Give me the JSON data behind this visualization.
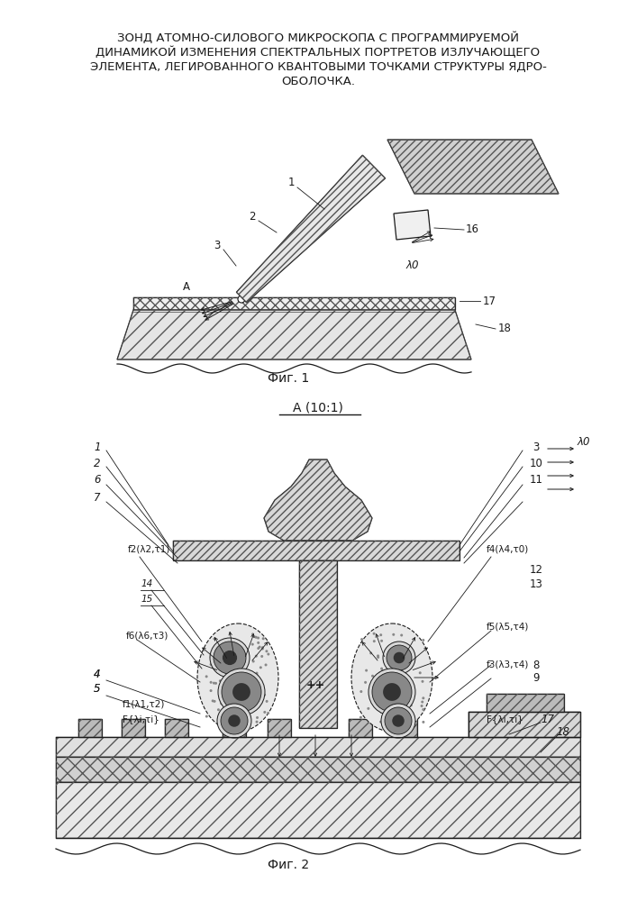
{
  "title_lines": [
    "ЗОНД АТОМНО-СИЛОВОГО МИКРОСКОПА С ПРОГРАММИРУЕМОЙ",
    "ДИНАМИКОЙ ИЗМЕНЕНИЯ СПЕКТРАЛЬНЫХ ПОРТРЕТОВ ИЗЛУЧАЮЩЕГО",
    "ЭЛЕМЕНТА, ЛЕГИРОВАННОГО КВАНТОВЫМИ ТОЧКАМИ СТРУКТУРЫ ЯДРО-",
    "ОБОЛОЧКА."
  ],
  "fig1_caption": "Фиг. 1",
  "fig2_caption": "Фиг. 2",
  "fig2_title": "А (10:1)",
  "background": "#ffffff",
  "line_color": "#1a1a1a",
  "title_fontsize": 9.5,
  "caption_fontsize": 10,
  "label_fontsize": 8.5
}
